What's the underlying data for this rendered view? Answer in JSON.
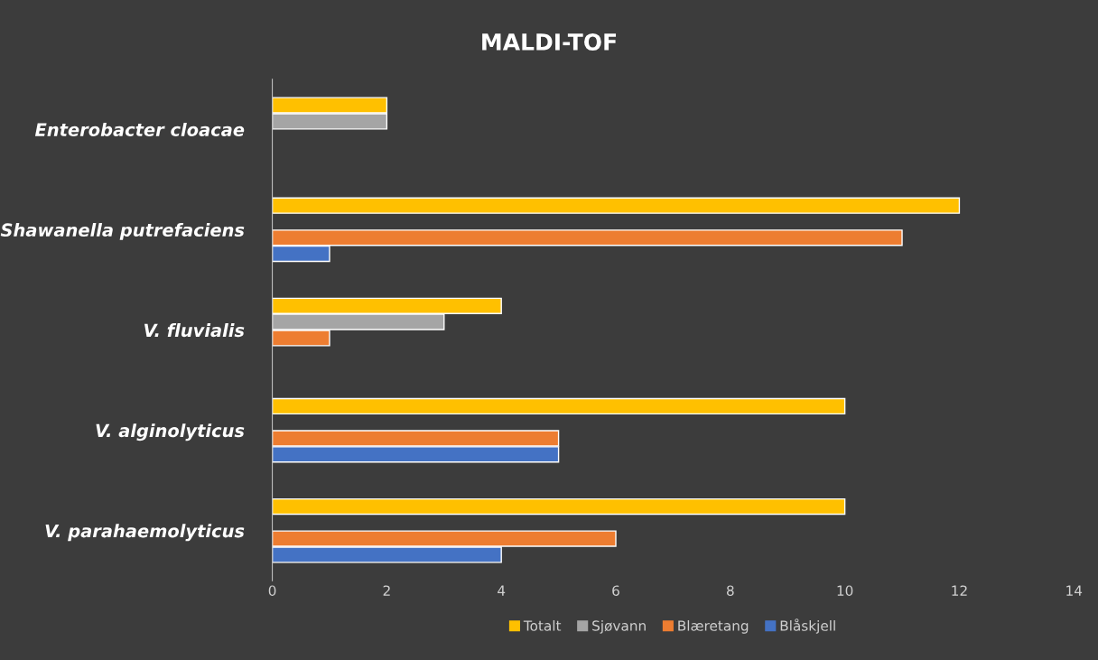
{
  "chart_data": {
    "type": "bar",
    "orientation": "horizontal",
    "title": "MALDI-TOF",
    "categories": [
      "Enterobacter cloacae",
      "Shawanella putrefaciens",
      "V. fluvialis",
      "V. alginolyticus",
      "V. parahaemolyticus"
    ],
    "series": [
      {
        "name": "Totalt",
        "color": "#ffc000",
        "values": [
          2,
          12,
          4,
          10,
          10
        ]
      },
      {
        "name": "Sjøvann",
        "color": "#a5a5a5",
        "values": [
          2,
          null,
          3,
          null,
          null
        ]
      },
      {
        "name": "Blæretang",
        "color": "#ed7d31",
        "values": [
          null,
          11,
          1,
          5,
          6
        ]
      },
      {
        "name": "Blåskjell",
        "color": "#4472c4",
        "values": [
          null,
          1,
          null,
          5,
          4
        ]
      }
    ],
    "xlim": [
      0,
      14
    ],
    "xticks": [
      0,
      2,
      4,
      6,
      8,
      10,
      12,
      14
    ],
    "grid": false,
    "legend": "bottom"
  }
}
